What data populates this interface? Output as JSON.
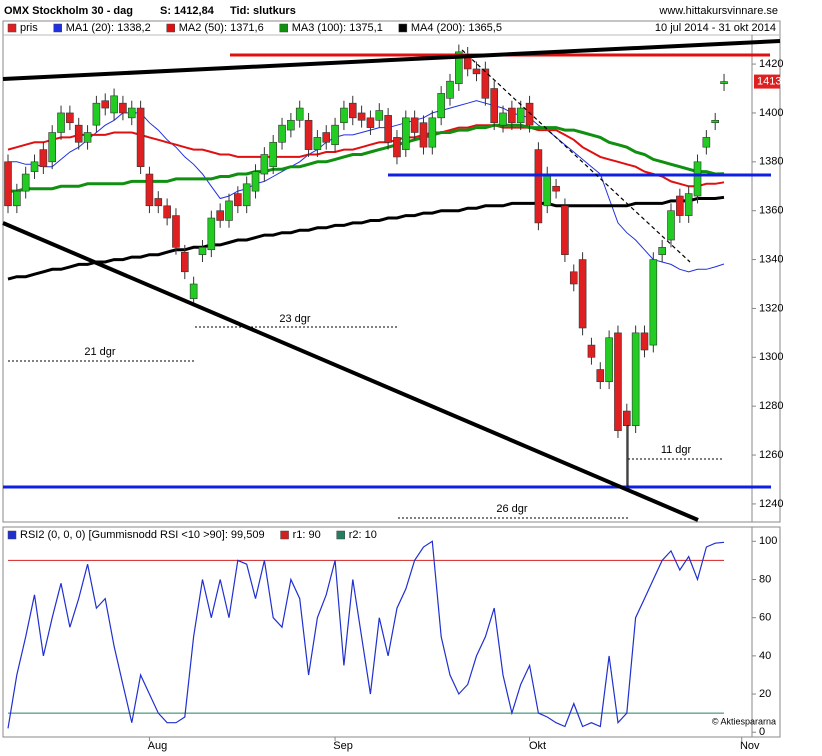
{
  "chart_data": [
    {
      "type": "candlestick",
      "title": "OMX Stockholm 30 - dag",
      "subtitle": "S: 1412,84",
      "mode": "Tid: slutkurs",
      "source": "www.hittakursvinnare.se",
      "period": "10 jul 2014 - 31 okt 2014",
      "last_price_label": "1413",
      "annotations": [
        "21 dgr",
        "23 dgr",
        "26 dgr",
        "11 dgr"
      ],
      "ylim": [
        1232.6,
        1431.9
      ],
      "yticks": [
        1240,
        1260,
        1280,
        1300,
        1320,
        1340,
        1360,
        1380,
        1400,
        1420
      ],
      "series": [
        {
          "name": "pris",
          "color": "#e02020",
          "up_color": "#22cc22",
          "open": [
            1380,
            1362,
            1368,
            1376,
            1385,
            1380,
            1392,
            1400,
            1395,
            1388,
            1395,
            1405,
            1400,
            1404,
            1398,
            1402,
            1375,
            1365,
            1362,
            1358,
            1343,
            1324,
            1342,
            1344,
            1360,
            1356,
            1367,
            1362,
            1368,
            1375,
            1378,
            1388,
            1393,
            1397,
            1397,
            1385,
            1392,
            1387,
            1396,
            1404,
            1400,
            1398,
            1397,
            1399,
            1390,
            1385,
            1398,
            1396,
            1386,
            1398,
            1406,
            1412,
            1424,
            1418,
            1418,
            1410,
            1395,
            1402,
            1396,
            1404,
            1385,
            1362,
            1370,
            1362,
            1335,
            1340,
            1305,
            1295,
            1290,
            1310,
            1278,
            1272,
            1310,
            1305,
            1342,
            1348,
            1366,
            1358,
            1366,
            1386,
            1396,
            1412,
            null,
            null
          ],
          "high": [
            1383,
            1371,
            1378,
            1383,
            1388,
            1395,
            1403,
            1403,
            1398,
            1395,
            1407,
            1408,
            1410,
            1407,
            1405,
            1405,
            1378,
            1368,
            1365,
            1361,
            1346,
            1333,
            1348,
            1360,
            1363,
            1367,
            1370,
            1374,
            1379,
            1386,
            1391,
            1398,
            1400,
            1405,
            1400,
            1393,
            1395,
            1398,
            1405,
            1407,
            1403,
            1401,
            1404,
            1402,
            1393,
            1401,
            1401,
            1399,
            1401,
            1411,
            1416,
            1428,
            1427,
            1421,
            1421,
            1413,
            1403,
            1405,
            1405,
            1407,
            1388,
            1378,
            1373,
            1365,
            1338,
            1343,
            1308,
            1298,
            1311,
            1313,
            1281,
            1313,
            1313,
            1343,
            1348,
            1363,
            1369,
            1370,
            1383,
            1393,
            1400,
            1416,
            null,
            null
          ],
          "low": [
            1359,
            1359,
            1365,
            1373,
            1375,
            1377,
            1389,
            1393,
            1385,
            1385,
            1392,
            1399,
            1397,
            1397,
            1395,
            1375,
            1359,
            1359,
            1354,
            1342,
            1332,
            1321,
            1339,
            1341,
            1353,
            1353,
            1359,
            1359,
            1365,
            1372,
            1375,
            1385,
            1390,
            1394,
            1382,
            1382,
            1385,
            1384,
            1393,
            1395,
            1394,
            1391,
            1394,
            1385,
            1379,
            1382,
            1389,
            1383,
            1383,
            1395,
            1403,
            1409,
            1415,
            1413,
            1403,
            1393,
            1392,
            1393,
            1393,
            1392,
            1352,
            1359,
            1365,
            1339,
            1327,
            1309,
            1297,
            1287,
            1287,
            1267,
            1247,
            1269,
            1300,
            1302,
            1339,
            1345,
            1355,
            1355,
            1363,
            1383,
            1393,
            1409,
            null,
            null
          ],
          "close": [
            1362,
            1368,
            1375,
            1380,
            1378,
            1392,
            1400,
            1396,
            1388,
            1392,
            1404,
            1402,
            1407,
            1400,
            1402,
            1378,
            1362,
            1362,
            1357,
            1345,
            1335,
            1330,
            1345,
            1357,
            1356,
            1364,
            1362,
            1371,
            1376,
            1383,
            1388,
            1395,
            1397,
            1402,
            1385,
            1390,
            1388,
            1395,
            1402,
            1398,
            1397,
            1394,
            1401,
            1388,
            1382,
            1398,
            1392,
            1386,
            1398,
            1408,
            1413,
            1425,
            1418,
            1416,
            1406,
            1396,
            1400,
            1396,
            1402,
            1395,
            1355,
            1375,
            1368,
            1342,
            1330,
            1312,
            1300,
            1290,
            1308,
            1270,
            1272,
            1310,
            1303,
            1340,
            1345,
            1360,
            1358,
            1367,
            1380,
            1390,
            1397,
            1412.84,
            null,
            null
          ]
        },
        {
          "name": "MA1 (20): 1338,2",
          "color": "#2030e0",
          "width": 1,
          "values": [
            1380,
            1380,
            1379,
            1379,
            1378,
            1378,
            1381,
            1384,
            1386,
            1389,
            1392,
            1395,
            1397,
            1400,
            1400,
            1400,
            1396,
            1393,
            1389,
            1386,
            1382,
            1379,
            1375,
            1370,
            1365,
            1366,
            1368,
            1369,
            1371,
            1372,
            1374,
            1376,
            1378,
            1380,
            1383,
            1385,
            1388,
            1390,
            1391,
            1391,
            1392,
            1393,
            1394,
            1394,
            1395,
            1396,
            1397,
            1398,
            1400,
            1401,
            1402,
            1403,
            1404,
            1405,
            1404,
            1403,
            1402,
            1400,
            1399,
            1398,
            1395,
            1393,
            1390,
            1387,
            1384,
            1381,
            1378,
            1375,
            1365,
            1355,
            1351,
            1348,
            1344,
            1340,
            1339,
            1338,
            1336,
            1335,
            1336,
            1336,
            1337,
            1338.2,
            null,
            null
          ]
        },
        {
          "name": "MA2 (50): 1371,6",
          "color": "#e01010",
          "width": 2,
          "values": [
            1385,
            1386,
            1387,
            1388,
            1388,
            1389,
            1390,
            1390,
            1391,
            1391,
            1391,
            1391,
            1392,
            1392,
            1392,
            1391,
            1390,
            1389,
            1388,
            1387,
            1386,
            1385,
            1385,
            1384,
            1383,
            1383,
            1382,
            1382,
            1382,
            1382,
            1382,
            1382,
            1382,
            1382,
            1383,
            1383,
            1384,
            1384,
            1385,
            1385,
            1386,
            1387,
            1388,
            1388,
            1389,
            1390,
            1390,
            1391,
            1392,
            1392,
            1393,
            1394,
            1394,
            1395,
            1395,
            1395,
            1394,
            1394,
            1394,
            1394,
            1393,
            1393,
            1393,
            1391,
            1389,
            1386,
            1384,
            1382,
            1381,
            1380,
            1379,
            1378,
            1376,
            1375,
            1374,
            1372,
            1371,
            1370,
            1370,
            1371,
            1371,
            1371.6,
            null,
            null
          ]
        },
        {
          "name": "MA3 (100): 1375,1",
          "color": "#109010",
          "width": 3,
          "values": [
            1368,
            1368,
            1369,
            1369,
            1369,
            1369,
            1370,
            1370,
            1370,
            1371,
            1371,
            1371,
            1371,
            1371,
            1372,
            1372,
            1372,
            1372,
            1372,
            1373,
            1373,
            1373,
            1373,
            1373,
            1374,
            1374,
            1375,
            1375,
            1376,
            1376,
            1377,
            1377,
            1378,
            1378,
            1379,
            1380,
            1380,
            1381,
            1382,
            1383,
            1383,
            1384,
            1385,
            1386,
            1387,
            1388,
            1389,
            1390,
            1391,
            1392,
            1392,
            1393,
            1393,
            1394,
            1394,
            1395,
            1395,
            1395,
            1395,
            1394,
            1394,
            1394,
            1394,
            1393,
            1393,
            1392,
            1391,
            1390,
            1388,
            1387,
            1386,
            1384,
            1383,
            1381,
            1380,
            1379,
            1378,
            1377,
            1376,
            1376,
            1375,
            1375.1,
            null,
            null
          ]
        },
        {
          "name": "MA4 (200): 1365,5",
          "color": "#000000",
          "width": 3,
          "values": [
            1332,
            1333,
            1333,
            1334,
            1335,
            1336,
            1336,
            1337,
            1338,
            1338,
            1339,
            1339,
            1340,
            1340,
            1341,
            1341,
            1342,
            1342,
            1343,
            1344,
            1344,
            1345,
            1345,
            1346,
            1346,
            1347,
            1348,
            1348,
            1349,
            1350,
            1350,
            1351,
            1351,
            1352,
            1352,
            1353,
            1353,
            1354,
            1354,
            1355,
            1355,
            1356,
            1356,
            1357,
            1357,
            1358,
            1358,
            1359,
            1359,
            1360,
            1360,
            1360,
            1361,
            1361,
            1362,
            1362,
            1362,
            1363,
            1363,
            1363,
            1363,
            1363,
            1362,
            1362,
            1362,
            1362,
            1362,
            1362,
            1362,
            1362,
            1362,
            1363,
            1363,
            1363,
            1363,
            1364,
            1364,
            1364,
            1365,
            1365,
            1365,
            1365.5,
            null,
            null
          ]
        }
      ]
    },
    {
      "type": "line",
      "credit": "© Aktiespararna",
      "categories": [
        null,
        null,
        null,
        null,
        null,
        null,
        null,
        null,
        null,
        null,
        null,
        null,
        null,
        null,
        null,
        null,
        "Aug",
        null,
        null,
        null,
        null,
        null,
        null,
        null,
        null,
        null,
        null,
        null,
        null,
        null,
        null,
        null,
        null,
        null,
        null,
        null,
        null,
        "Sep",
        null,
        null,
        null,
        null,
        null,
        null,
        null,
        null,
        null,
        null,
        null,
        null,
        null,
        null,
        null,
        null,
        null,
        null,
        null,
        null,
        null,
        "Okt",
        null,
        null,
        null,
        null,
        null,
        null,
        null,
        null,
        null,
        null,
        null,
        null,
        null,
        null,
        null,
        null,
        null,
        null,
        null,
        null,
        null,
        null,
        null,
        "Nov"
      ],
      "ylim": [
        -2.5,
        107.5
      ],
      "yticks": [
        0,
        20,
        40,
        60,
        80,
        100
      ],
      "series": [
        {
          "name": "RSI2 (0, 0, 0) [Gummisnodd RSI <10 >90]: 99,509",
          "color": "#2030d0",
          "values": [
            2,
            30,
            50,
            72,
            40,
            60,
            78,
            55,
            70,
            88,
            65,
            70,
            45,
            25,
            5,
            30,
            20,
            10,
            5,
            5,
            8,
            50,
            80,
            60,
            80,
            60,
            90,
            88,
            70,
            90,
            60,
            55,
            80,
            70,
            30,
            60,
            72,
            90,
            35,
            80,
            50,
            20,
            60,
            40,
            65,
            75,
            90,
            97,
            100,
            50,
            30,
            20,
            25,
            40,
            50,
            65,
            30,
            10,
            25,
            35,
            10,
            8,
            5,
            3,
            15,
            3,
            5,
            3,
            40,
            5,
            10,
            60,
            70,
            80,
            90,
            95,
            85,
            92,
            80,
            97,
            99,
            99.5,
            null,
            null
          ]
        }
      ],
      "hlines": [
        {
          "name": "r1: 90",
          "value": 90,
          "color": "#d02020"
        },
        {
          "name": "r2: 10",
          "value": 10,
          "color": "#208060"
        }
      ]
    }
  ]
}
